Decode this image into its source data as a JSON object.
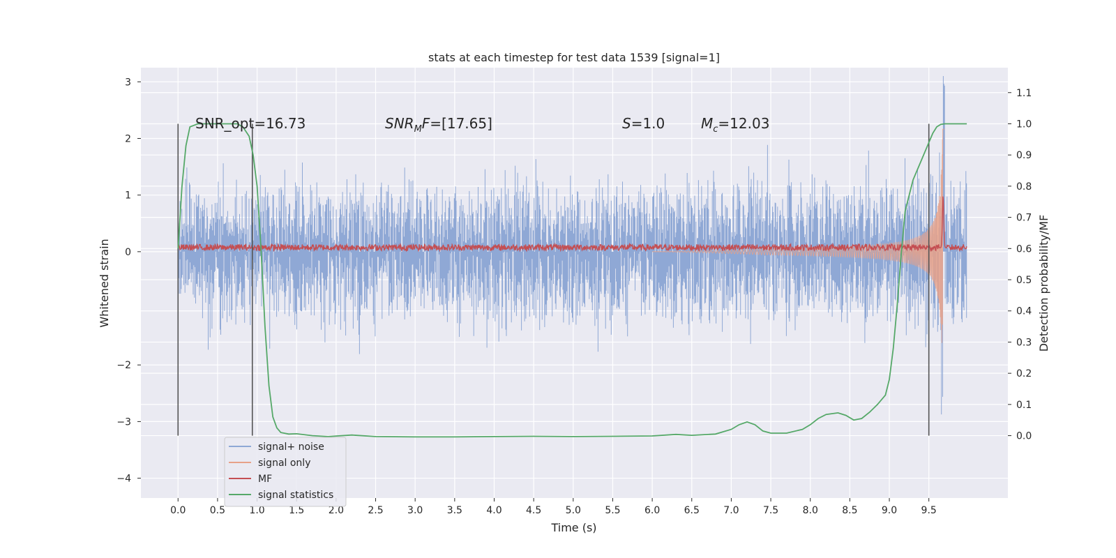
{
  "chart_data": {
    "type": "line",
    "title": "stats at each timestep for test data 1539 [signal=1]",
    "xlabel": "Time (s)",
    "ylabel": "Whitened strain",
    "ylabel_right": "Detection probability/MF",
    "xlim": [
      -0.47,
      10.5
    ],
    "ylim": [
      -4.35,
      3.25
    ],
    "ylim_right": [
      -0.2,
      1.18
    ],
    "xticks": [
      "0.0",
      "0.5",
      "1.0",
      "1.5",
      "2.0",
      "2.5",
      "3.0",
      "3.5",
      "4.0",
      "4.5",
      "5.0",
      "5.5",
      "6.0",
      "6.5",
      "7.0",
      "7.5",
      "8.0",
      "8.5",
      "9.0",
      "9.5"
    ],
    "yticks": [
      "3",
      "2",
      "1",
      "0",
      "−2",
      "−3",
      "−4"
    ],
    "yticks_right": [
      "1.1",
      "1.0",
      "0.9",
      "0.8",
      "0.7",
      "0.6",
      "0.5",
      "0.4",
      "0.3",
      "0.2",
      "0.1",
      "0.0"
    ],
    "grid": true,
    "legend_position": "lower-left",
    "annotations": {
      "snr_opt": "SNR_opt=16.73",
      "snr_mf_base": "SNR",
      "snr_mf_sub": "M",
      "snr_mf_tail": "F",
      "snr_mf_value": "=[17.65]",
      "s_base": "S",
      "s_value": "=1.0",
      "mc_base": "M",
      "mc_sub": "c",
      "mc_value": "=12.03"
    },
    "vertical_markers_x": [
      0.0,
      0.94,
      9.5
    ],
    "series": [
      {
        "name": "signal+ noise",
        "color": "#8fa8d5",
        "axis": "left",
        "noise_rms": 0.8,
        "x_range": [
          0.0,
          9.98
        ]
      },
      {
        "name": "signal only",
        "color": "#e7a188",
        "axis": "left",
        "chirp_peak_x": 9.68,
        "peak_amplitude": 2.6
      },
      {
        "name": "MF",
        "color": "#c44e52",
        "axis": "left",
        "baseline": 0.07,
        "peak_x": 9.68,
        "peak_value": 1.0
      },
      {
        "name": "signal statistics",
        "color": "#55a868",
        "axis": "right",
        "x": [
          0.0,
          0.05,
          0.1,
          0.15,
          0.25,
          0.4,
          0.6,
          0.75,
          0.82,
          0.9,
          0.95,
          1.0,
          1.05,
          1.1,
          1.15,
          1.2,
          1.25,
          1.3,
          1.4,
          1.5,
          1.7,
          1.9,
          2.2,
          2.5,
          3.0,
          3.5,
          4.0,
          4.5,
          5.0,
          5.5,
          6.0,
          6.3,
          6.5,
          6.8,
          7.0,
          7.1,
          7.2,
          7.3,
          7.4,
          7.5,
          7.7,
          7.9,
          8.0,
          8.1,
          8.2,
          8.35,
          8.45,
          8.55,
          8.65,
          8.75,
          8.85,
          8.95,
          9.0,
          9.05,
          9.1,
          9.15,
          9.2,
          9.3,
          9.4,
          9.5,
          9.55,
          9.6,
          9.65,
          9.7,
          9.8,
          9.9,
          9.98
        ],
        "y": [
          0.6,
          0.8,
          0.93,
          0.99,
          1.0,
          1.0,
          1.0,
          1.0,
          0.99,
          0.96,
          0.9,
          0.8,
          0.6,
          0.35,
          0.16,
          0.06,
          0.025,
          0.01,
          0.005,
          0.006,
          0.0,
          -0.003,
          0.002,
          -0.003,
          -0.004,
          -0.004,
          -0.003,
          -0.002,
          -0.003,
          -0.002,
          -0.001,
          0.004,
          0.001,
          0.005,
          0.02,
          0.035,
          0.044,
          0.035,
          0.015,
          0.008,
          0.008,
          0.02,
          0.035,
          0.055,
          0.068,
          0.073,
          0.065,
          0.05,
          0.055,
          0.075,
          0.1,
          0.13,
          0.18,
          0.28,
          0.42,
          0.58,
          0.72,
          0.82,
          0.88,
          0.94,
          0.97,
          0.99,
          0.998,
          1.0,
          1.0,
          1.0,
          1.0
        ]
      }
    ]
  }
}
